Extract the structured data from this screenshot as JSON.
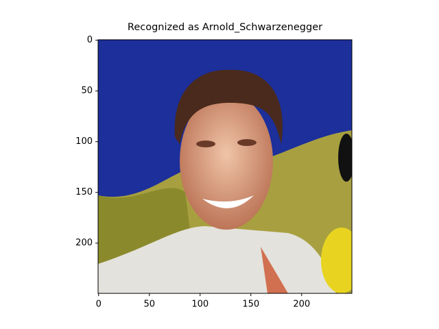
{
  "chart_data": {
    "type": "image",
    "title": "Recognized as Arnold_Schwarzenegger",
    "xlim": [
      -0.5,
      249.5
    ],
    "ylim": [
      249.5,
      -0.5
    ],
    "xticks": [
      0,
      50,
      100,
      150,
      200
    ],
    "yticks": [
      0,
      50,
      100,
      150,
      200
    ]
  }
}
